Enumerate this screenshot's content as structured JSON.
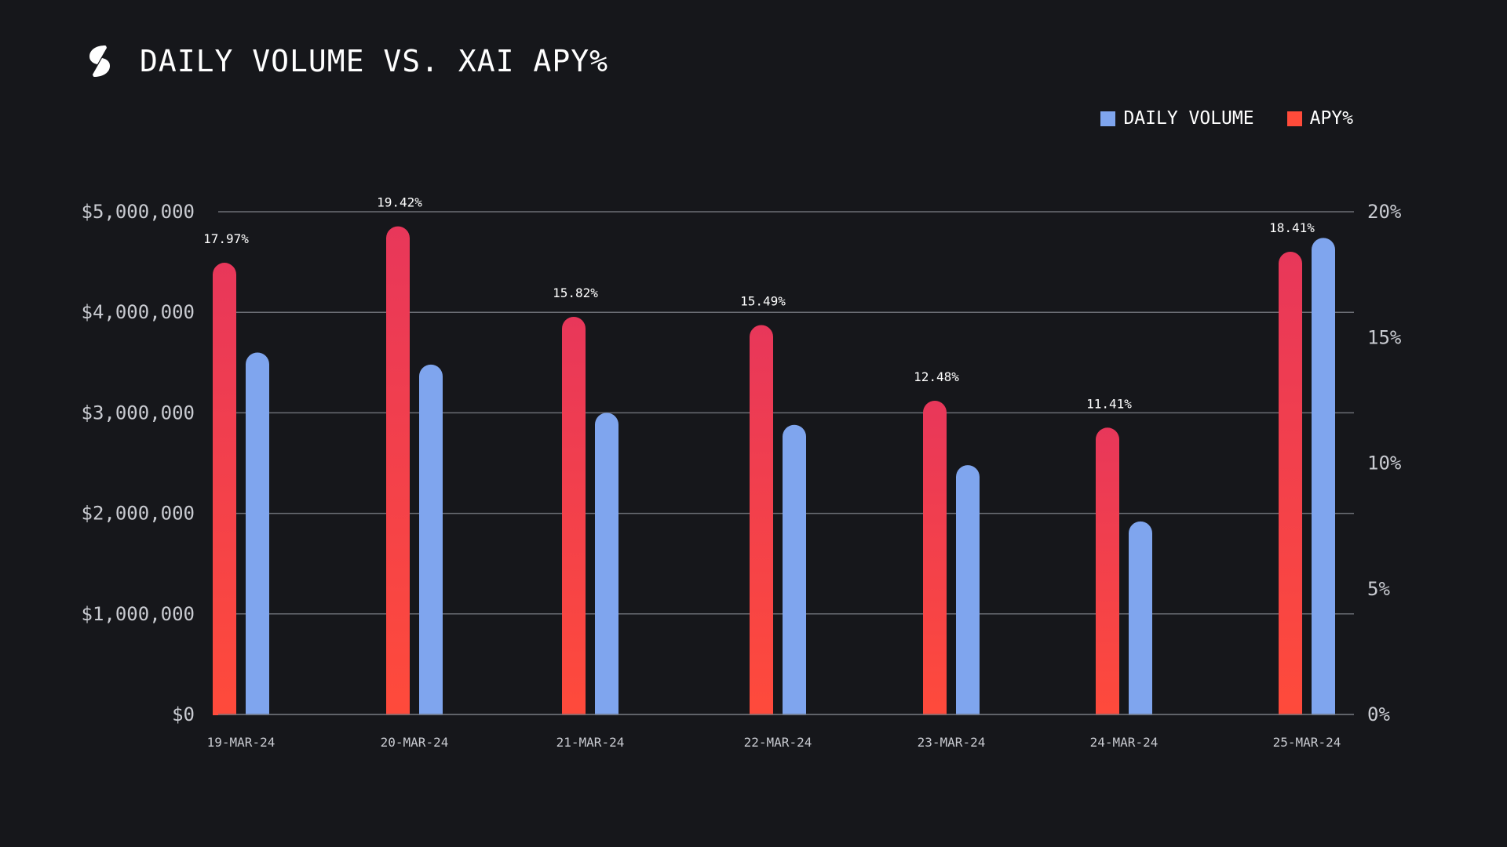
{
  "header": {
    "title": "DAILY VOLUME VS. XAI APY%"
  },
  "legend": {
    "items": [
      {
        "label": "DAILY VOLUME",
        "color": "#7fa5ee"
      },
      {
        "label": "APY%",
        "color": "#ff4b3a"
      }
    ]
  },
  "colors": {
    "background": "#16171b",
    "volume": "#7fa5ee",
    "apy_top": "#e8375a",
    "apy_bottom": "#ff4b3a",
    "grid": "#6b6e75"
  },
  "chart_data": {
    "type": "bar",
    "title": "DAILY VOLUME VS. XAI APY%",
    "categories": [
      "19-MAR-24",
      "20-MAR-24",
      "21-MAR-24",
      "22-MAR-24",
      "23-MAR-24",
      "24-MAR-24",
      "25-MAR-24"
    ],
    "series": [
      {
        "name": "APY%",
        "axis": "right",
        "values": [
          17.97,
          19.42,
          15.82,
          15.49,
          12.48,
          11.41,
          18.41
        ],
        "labels": [
          "17.97%",
          "19.42%",
          "15.82%",
          "15.49%",
          "12.48%",
          "11.41%",
          "18.41%"
        ]
      },
      {
        "name": "DAILY VOLUME",
        "axis": "left",
        "values": [
          3600000,
          3480000,
          3000000,
          2880000,
          2480000,
          1920000,
          4740000
        ]
      }
    ],
    "y_left": {
      "ylim": [
        0,
        5000000
      ],
      "ticks": [
        0,
        1000000,
        2000000,
        3000000,
        4000000,
        5000000
      ],
      "tick_labels": [
        "$0",
        "$1,000,000",
        "$2,000,000",
        "$3,000,000",
        "$4,000,000",
        "$5,000,000"
      ]
    },
    "y_right": {
      "ylim": [
        0,
        20
      ],
      "ticks": [
        0,
        5,
        10,
        15,
        20
      ],
      "tick_labels": [
        "0%",
        "5%",
        "10%",
        "15%",
        "20%"
      ]
    },
    "grid": true,
    "legend_position": "top-right"
  }
}
